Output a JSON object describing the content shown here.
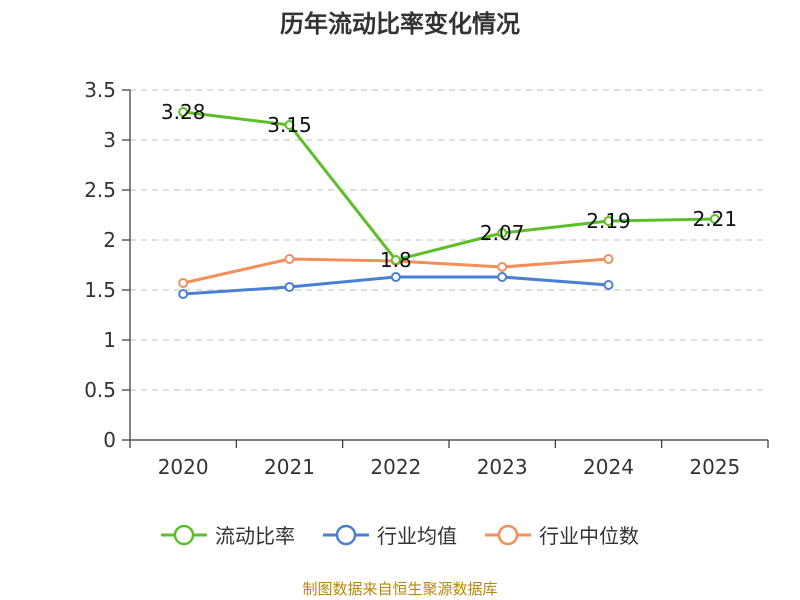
{
  "chart_data": {
    "type": "line",
    "title": "历年流动比率变化情况",
    "categories": [
      "2020",
      "2021",
      "2022",
      "2023",
      "2024",
      "2025"
    ],
    "ylim": [
      0,
      3.5
    ],
    "yticks": [
      "0",
      "0.5",
      "1",
      "1.5",
      "2",
      "2.5",
      "3",
      "3.5"
    ],
    "grid": true,
    "legend_position": "bottom",
    "series": [
      {
        "name": "流动比率",
        "color": "#5cbf2a",
        "values": [
          3.28,
          3.15,
          1.8,
          2.07,
          2.19,
          2.21
        ],
        "show_labels": true,
        "labels": [
          "3.28",
          "3.15",
          "1.8",
          "2.07",
          "2.19",
          "2.21"
        ]
      },
      {
        "name": "行业均值",
        "color": "#4a7fd4",
        "values": [
          1.46,
          1.53,
          1.63,
          1.63,
          1.55,
          null
        ],
        "show_labels": false
      },
      {
        "name": "行业中位数",
        "color": "#f28f5a",
        "values": [
          1.57,
          1.81,
          1.79,
          1.73,
          1.81,
          null
        ],
        "show_labels": false
      }
    ]
  },
  "source_note": "制图数据来自恒生聚源数据库"
}
